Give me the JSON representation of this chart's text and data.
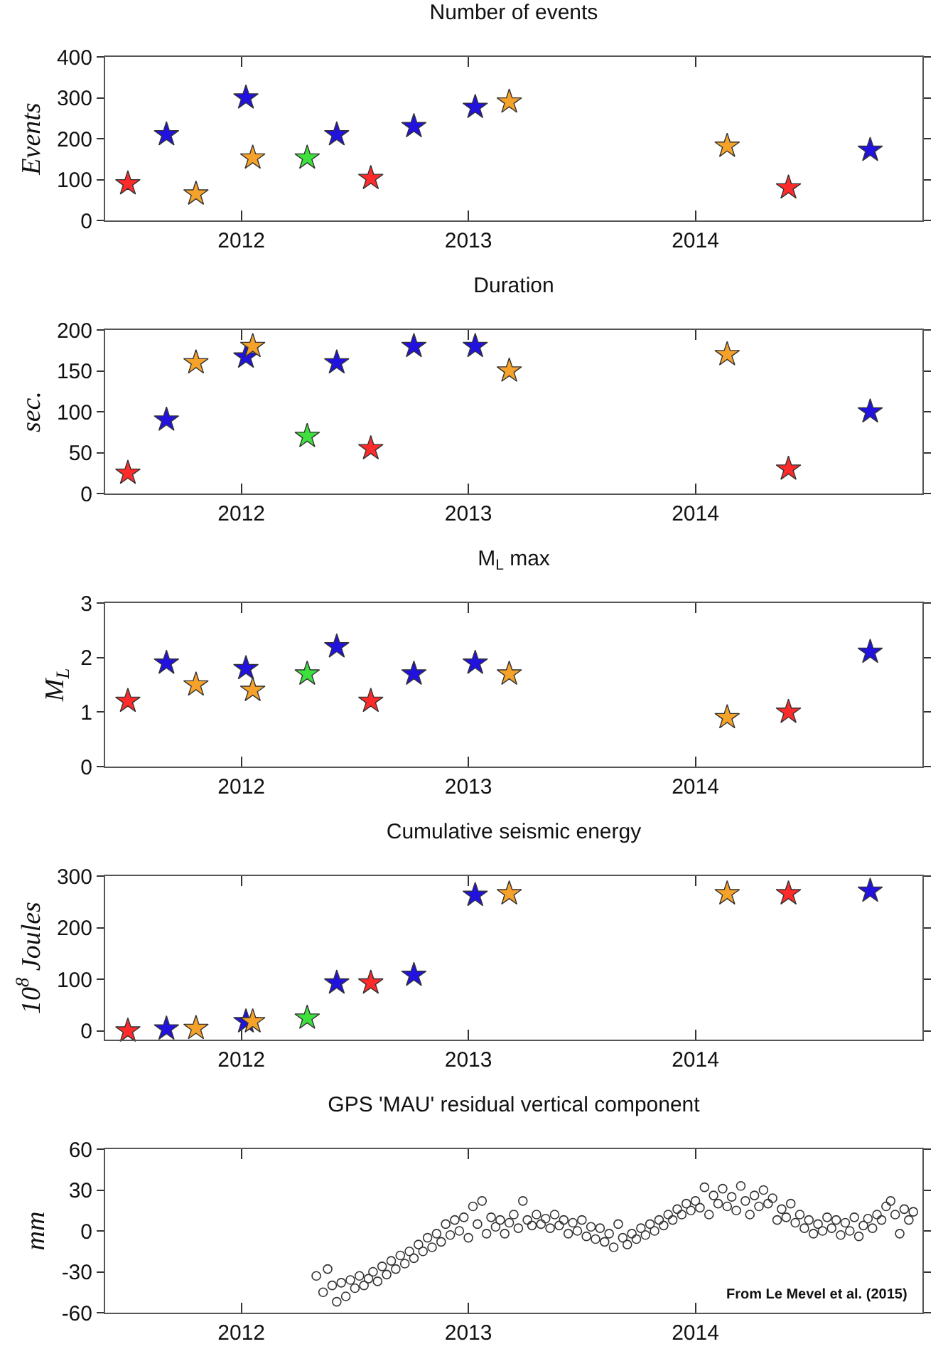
{
  "chart_data": [
    {
      "type": "scatter",
      "title": "Number of events",
      "ylabel": "Events",
      "marker": "star",
      "xlim": [
        2011.4,
        2015.0
      ],
      "xticks": [
        2012,
        2013,
        2014
      ],
      "ylim": [
        0,
        400
      ],
      "yticks": [
        0,
        100,
        200,
        300,
        400
      ],
      "x": [
        2011.5,
        2011.67,
        2011.8,
        2012.02,
        2012.05,
        2012.29,
        2012.42,
        2012.57,
        2012.76,
        2013.03,
        2013.18,
        2014.14,
        2014.41,
        2014.77
      ],
      "series": [
        {
          "values": [
            90,
            210,
            65,
            300,
            153,
            153,
            210,
            103,
            230,
            277,
            290,
            182,
            80,
            172
          ],
          "colors": [
            "#ff2a2a",
            "#2212e0",
            "#f5a22a",
            "#2212e0",
            "#f5a22a",
            "#3ee03e",
            "#2212e0",
            "#ff2a2a",
            "#2212e0",
            "#2212e0",
            "#f5a22a",
            "#f5a22a",
            "#ff2a2a",
            "#2212e0"
          ]
        }
      ]
    },
    {
      "type": "scatter",
      "title": "Duration",
      "ylabel": "sec.",
      "marker": "star",
      "xlim": [
        2011.4,
        2015.0
      ],
      "xticks": [
        2012,
        2013,
        2014
      ],
      "ylim": [
        0,
        200
      ],
      "yticks": [
        0,
        50,
        100,
        150,
        200
      ],
      "x": [
        2011.5,
        2011.67,
        2011.8,
        2012.02,
        2012.05,
        2012.29,
        2012.42,
        2012.57,
        2012.76,
        2013.03,
        2013.18,
        2014.14,
        2014.41,
        2014.77
      ],
      "series": [
        {
          "values": [
            25,
            90,
            160,
            167,
            180,
            70,
            160,
            55,
            180,
            180,
            150,
            170,
            30,
            100
          ],
          "colors": [
            "#ff2a2a",
            "#2212e0",
            "#f5a22a",
            "#2212e0",
            "#f5a22a",
            "#3ee03e",
            "#2212e0",
            "#ff2a2a",
            "#2212e0",
            "#2212e0",
            "#f5a22a",
            "#f5a22a",
            "#ff2a2a",
            "#2212e0"
          ]
        }
      ]
    },
    {
      "type": "scatter",
      "title": "M$_{L}$ max",
      "ylabel": "M$_{L}$",
      "marker": "star",
      "xlim": [
        2011.4,
        2015.0
      ],
      "xticks": [
        2012,
        2013,
        2014
      ],
      "ylim": [
        0,
        3
      ],
      "yticks": [
        0,
        1,
        2,
        3
      ],
      "x": [
        2011.5,
        2011.67,
        2011.8,
        2012.02,
        2012.05,
        2012.29,
        2012.42,
        2012.57,
        2012.76,
        2013.03,
        2013.18,
        2014.14,
        2014.41,
        2014.77
      ],
      "series": [
        {
          "values": [
            1.2,
            1.9,
            1.5,
            1.8,
            1.4,
            1.7,
            2.2,
            1.2,
            1.7,
            1.9,
            1.7,
            0.9,
            1.0,
            2.1
          ],
          "colors": [
            "#ff2a2a",
            "#2212e0",
            "#f5a22a",
            "#2212e0",
            "#f5a22a",
            "#3ee03e",
            "#2212e0",
            "#ff2a2a",
            "#2212e0",
            "#2212e0",
            "#f5a22a",
            "#f5a22a",
            "#ff2a2a",
            "#2212e0"
          ]
        }
      ]
    },
    {
      "type": "scatter",
      "title": "Cumulative seismic energy",
      "ylabel": "10$^{8}$ Joules",
      "marker": "star",
      "xlim": [
        2011.4,
        2015.0
      ],
      "xticks": [
        2012,
        2013,
        2014
      ],
      "ylim": [
        -17,
        300
      ],
      "yticks": [
        0,
        100,
        200,
        300
      ],
      "x": [
        2011.5,
        2011.67,
        2011.8,
        2012.02,
        2012.05,
        2012.29,
        2012.42,
        2012.57,
        2012.76,
        2013.03,
        2013.18,
        2014.14,
        2014.41,
        2014.77
      ],
      "series": [
        {
          "values": [
            0,
            4,
            5,
            18,
            18,
            25,
            93,
            93,
            108,
            263,
            266,
            266,
            266,
            271
          ],
          "colors": [
            "#ff2a2a",
            "#2212e0",
            "#f5a22a",
            "#2212e0",
            "#f5a22a",
            "#3ee03e",
            "#2212e0",
            "#ff2a2a",
            "#2212e0",
            "#2212e0",
            "#f5a22a",
            "#f5a22a",
            "#ff2a2a",
            "#2212e0"
          ]
        }
      ]
    },
    {
      "type": "scatter",
      "title": "GPS 'MAU' residual vertical component",
      "ylabel": "mm",
      "marker": "circle",
      "xlim": [
        2011.4,
        2015.0
      ],
      "xticks": [
        2012,
        2013,
        2014
      ],
      "ylim": [
        -60,
        60
      ],
      "yticks": [
        -60,
        -30,
        0,
        30,
        60
      ],
      "annotations": [
        "From Le Mevel et al. (2015)"
      ],
      "x": [
        2012.33,
        2012.36,
        2012.38,
        2012.4,
        2012.42,
        2012.44,
        2012.46,
        2012.48,
        2012.5,
        2012.52,
        2012.54,
        2012.56,
        2012.58,
        2012.6,
        2012.62,
        2012.64,
        2012.66,
        2012.68,
        2012.7,
        2012.72,
        2012.74,
        2012.76,
        2012.78,
        2012.8,
        2012.82,
        2012.84,
        2012.86,
        2012.88,
        2012.9,
        2012.92,
        2012.94,
        2012.96,
        2012.98,
        2013.0,
        2013.02,
        2013.04,
        2013.06,
        2013.08,
        2013.1,
        2013.12,
        2013.14,
        2013.16,
        2013.18,
        2013.2,
        2013.22,
        2013.24,
        2013.26,
        2013.28,
        2013.3,
        2013.32,
        2013.34,
        2013.36,
        2013.38,
        2013.4,
        2013.42,
        2013.44,
        2013.46,
        2013.48,
        2013.5,
        2013.52,
        2013.54,
        2013.56,
        2013.58,
        2013.6,
        2013.62,
        2013.64,
        2013.66,
        2013.68,
        2013.7,
        2013.72,
        2013.74,
        2013.76,
        2013.78,
        2013.8,
        2013.82,
        2013.84,
        2013.86,
        2013.88,
        2013.9,
        2013.92,
        2013.94,
        2013.96,
        2013.98,
        2014.0,
        2014.02,
        2014.04,
        2014.06,
        2014.08,
        2014.1,
        2014.12,
        2014.14,
        2014.16,
        2014.18,
        2014.2,
        2014.22,
        2014.24,
        2014.26,
        2014.28,
        2014.3,
        2014.32,
        2014.34,
        2014.36,
        2014.38,
        2014.4,
        2014.42,
        2014.44,
        2014.46,
        2014.48,
        2014.5,
        2014.52,
        2014.54,
        2014.56,
        2014.58,
        2014.6,
        2014.62,
        2014.64,
        2014.66,
        2014.68,
        2014.7,
        2014.72,
        2014.74,
        2014.76,
        2014.78,
        2014.8,
        2014.82,
        2014.84,
        2014.86,
        2014.88,
        2014.9,
        2014.92,
        2014.94,
        2014.96
      ],
      "series": [
        {
          "color": "#333333",
          "values": [
            -33,
            -45,
            -28,
            -40,
            -52,
            -38,
            -48,
            -36,
            -42,
            -33,
            -40,
            -35,
            -30,
            -37,
            -26,
            -32,
            -22,
            -28,
            -18,
            -24,
            -15,
            -20,
            -10,
            -15,
            -5,
            -12,
            -2,
            -8,
            5,
            -3,
            8,
            0,
            10,
            -5,
            18,
            5,
            22,
            -2,
            10,
            3,
            8,
            -2,
            6,
            12,
            2,
            22,
            8,
            4,
            12,
            5,
            9,
            2,
            12,
            4,
            8,
            -2,
            6,
            0,
            8,
            -4,
            3,
            -6,
            2,
            -8,
            -2,
            -12,
            5,
            -5,
            -10,
            -2,
            -6,
            2,
            -3,
            5,
            0,
            8,
            4,
            12,
            8,
            16,
            12,
            20,
            15,
            22,
            17,
            32,
            12,
            26,
            20,
            31,
            18,
            25,
            15,
            33,
            22,
            12,
            26,
            18,
            30,
            20,
            24,
            8,
            16,
            10,
            20,
            6,
            12,
            2,
            8,
            -2,
            5,
            0,
            10,
            2,
            8,
            -3,
            6,
            0,
            10,
            -4,
            4,
            9,
            2,
            12,
            8,
            18,
            22,
            12,
            -2,
            16,
            8,
            14
          ]
        }
      ]
    }
  ]
}
